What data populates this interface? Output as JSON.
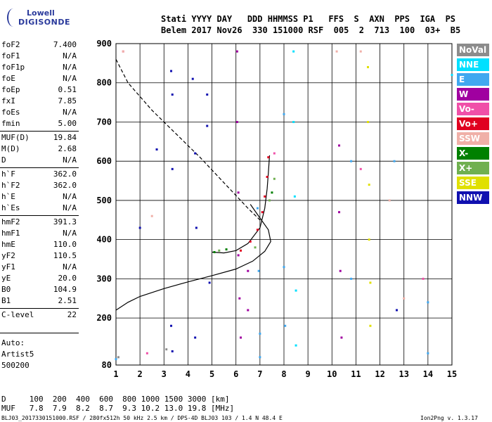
{
  "logo": {
    "line1": "Lowell",
    "line2": "DIGISONDE"
  },
  "header": {
    "row1": "Stati YYYY DAY   DDD HHMMSS P1   FFS  S  AXN  PPS  IGA  PS",
    "row2": "Belem 2017 Nov26  330 151000 RSF  005  2  713  100  03+  B5"
  },
  "params": [
    {
      "name": "foF2",
      "value": "7.400"
    },
    {
      "name": "foF1",
      "value": "N/A"
    },
    {
      "name": "foF1p",
      "value": "N/A"
    },
    {
      "name": "foE",
      "value": "N/A"
    },
    {
      "name": "foEp",
      "value": "0.51"
    },
    {
      "name": "fxI",
      "value": "7.85"
    },
    {
      "name": "foEs",
      "value": "N/A"
    },
    {
      "name": "fmin",
      "value": "5.00"
    },
    {
      "name": "MUF(D)",
      "value": "19.84"
    },
    {
      "name": "M(D)",
      "value": "2.68"
    },
    {
      "name": "D",
      "value": "N/A"
    },
    {
      "name": "h`F",
      "value": "362.0"
    },
    {
      "name": "h`F2",
      "value": "362.0"
    },
    {
      "name": "h`E",
      "value": "N/A"
    },
    {
      "name": "h`Es",
      "value": "N/A"
    },
    {
      "name": "hmF2",
      "value": "391.3"
    },
    {
      "name": "hmF1",
      "value": "N/A"
    },
    {
      "name": "hmE",
      "value": "110.0"
    },
    {
      "name": "yF2",
      "value": "110.5"
    },
    {
      "name": "yF1",
      "value": "N/A"
    },
    {
      "name": "yE",
      "value": "20.0"
    },
    {
      "name": "B0",
      "value": "104.9"
    },
    {
      "name": "B1",
      "value": "2.51"
    },
    {
      "name": "C-level",
      "value": "22"
    }
  ],
  "auto": {
    "line1": "Auto:",
    "line2": "Artist5",
    "line3": "500200"
  },
  "legend": [
    {
      "label": "NoVal",
      "color": "#8c8c8c"
    },
    {
      "label": "NNE",
      "color": "#00e0ff"
    },
    {
      "label": "E",
      "color": "#40a8f0"
    },
    {
      "label": "W",
      "color": "#a000a0"
    },
    {
      "label": "Vo-",
      "color": "#f050a8"
    },
    {
      "label": "Vo+",
      "color": "#e00020"
    },
    {
      "label": "SSW",
      "color": "#f0b0a8"
    },
    {
      "label": "X-",
      "color": "#008000"
    },
    {
      "label": "X+",
      "color": "#70b050"
    },
    {
      "label": "SSE",
      "color": "#e0e000"
    },
    {
      "label": "NNW",
      "color": "#1010b0"
    }
  ],
  "chart_data": {
    "type": "scatter",
    "xlim": [
      1,
      15
    ],
    "ylim": [
      80,
      900
    ],
    "x_ticks": [
      "1",
      "2",
      "3",
      "4",
      "5",
      "6",
      "7",
      "8",
      "9",
      "10",
      "11",
      "12",
      "13",
      "14",
      "15"
    ],
    "y_ticks": [
      "80",
      "200",
      "300",
      "400",
      "500",
      "600",
      "700",
      "800",
      "900"
    ],
    "grid": true,
    "curves": [
      {
        "name": "profile",
        "style": "solid",
        "points": [
          [
            1.0,
            220
          ],
          [
            1.5,
            240
          ],
          [
            2.0,
            255
          ],
          [
            3.0,
            275
          ],
          [
            4.0,
            292
          ],
          [
            5.0,
            308
          ],
          [
            6.0,
            325
          ],
          [
            6.7,
            345
          ],
          [
            7.2,
            370
          ],
          [
            7.45,
            395
          ],
          [
            7.35,
            425
          ],
          [
            7.0,
            455
          ],
          [
            6.6,
            490
          ]
        ]
      },
      {
        "name": "trace",
        "style": "solid",
        "points": [
          [
            5.0,
            368
          ],
          [
            5.5,
            366
          ],
          [
            6.0,
            372
          ],
          [
            6.5,
            390
          ],
          [
            7.0,
            430
          ],
          [
            7.2,
            480
          ],
          [
            7.3,
            530
          ],
          [
            7.35,
            570
          ],
          [
            7.4,
            615
          ]
        ]
      },
      {
        "name": "extrapolated",
        "style": "dashed",
        "points": [
          [
            1.0,
            860
          ],
          [
            1.5,
            800
          ],
          [
            2.5,
            730
          ],
          [
            3.5,
            670
          ],
          [
            4.5,
            610
          ],
          [
            5.5,
            545
          ],
          [
            6.5,
            480
          ],
          [
            7.0,
            450
          ]
        ]
      }
    ],
    "echoes": [
      {
        "series": "Vo+",
        "x": 6.2,
        "y": 372
      },
      {
        "series": "Vo+",
        "x": 6.6,
        "y": 395
      },
      {
        "series": "Vo+",
        "x": 6.9,
        "y": 425
      },
      {
        "series": "Vo+",
        "x": 7.1,
        "y": 470
      },
      {
        "series": "Vo+",
        "x": 7.2,
        "y": 510
      },
      {
        "series": "Vo+",
        "x": 7.3,
        "y": 560
      },
      {
        "series": "Vo+",
        "x": 7.35,
        "y": 610
      },
      {
        "series": "X+",
        "x": 5.3,
        "y": 372
      },
      {
        "series": "X+",
        "x": 6.8,
        "y": 380
      },
      {
        "series": "X+",
        "x": 7.4,
        "y": 500
      },
      {
        "series": "X+",
        "x": 7.6,
        "y": 555
      },
      {
        "series": "X-",
        "x": 5.1,
        "y": 368
      },
      {
        "series": "X-",
        "x": 5.6,
        "y": 375
      },
      {
        "series": "X-",
        "x": 7.5,
        "y": 520
      },
      {
        "series": "W",
        "x": 6.05,
        "y": 880
      },
      {
        "series": "W",
        "x": 6.05,
        "y": 700
      },
      {
        "series": "W",
        "x": 6.1,
        "y": 520
      },
      {
        "series": "W",
        "x": 6.1,
        "y": 360
      },
      {
        "series": "W",
        "x": 6.15,
        "y": 250
      },
      {
        "series": "W",
        "x": 6.2,
        "y": 150
      },
      {
        "series": "W",
        "x": 6.5,
        "y": 320
      },
      {
        "series": "W",
        "x": 6.5,
        "y": 220
      },
      {
        "series": "W",
        "x": 10.3,
        "y": 640
      },
      {
        "series": "W",
        "x": 10.3,
        "y": 470
      },
      {
        "series": "W",
        "x": 10.35,
        "y": 320
      },
      {
        "series": "W",
        "x": 10.4,
        "y": 150
      },
      {
        "series": "E",
        "x": 6.9,
        "y": 480
      },
      {
        "series": "E",
        "x": 6.95,
        "y": 320
      },
      {
        "series": "E",
        "x": 7.0,
        "y": 160
      },
      {
        "series": "E",
        "x": 7.0,
        "y": 100
      },
      {
        "series": "E",
        "x": 8.0,
        "y": 720
      },
      {
        "series": "E",
        "x": 8.0,
        "y": 330
      },
      {
        "series": "E",
        "x": 8.05,
        "y": 180
      },
      {
        "series": "E",
        "x": 10.8,
        "y": 600
      },
      {
        "series": "E",
        "x": 10.8,
        "y": 300
      },
      {
        "series": "E",
        "x": 12.6,
        "y": 600
      },
      {
        "series": "E",
        "x": 14.0,
        "y": 240
      },
      {
        "series": "E",
        "x": 14.0,
        "y": 110
      },
      {
        "series": "E",
        "x": 1.0,
        "y": 95
      },
      {
        "series": "NNE",
        "x": 8.4,
        "y": 880
      },
      {
        "series": "NNE",
        "x": 8.4,
        "y": 700
      },
      {
        "series": "NNE",
        "x": 8.45,
        "y": 510
      },
      {
        "series": "NNE",
        "x": 8.5,
        "y": 270
      },
      {
        "series": "NNE",
        "x": 8.5,
        "y": 130
      },
      {
        "series": "NNE",
        "x": 15.0,
        "y": 820
      },
      {
        "series": "NNW",
        "x": 3.3,
        "y": 830
      },
      {
        "series": "NNW",
        "x": 3.35,
        "y": 770
      },
      {
        "series": "NNW",
        "x": 3.35,
        "y": 580
      },
      {
        "series": "NNW",
        "x": 3.3,
        "y": 180
      },
      {
        "series": "NNW",
        "x": 3.35,
        "y": 115
      },
      {
        "series": "NNW",
        "x": 4.2,
        "y": 810
      },
      {
        "series": "NNW",
        "x": 4.3,
        "y": 620
      },
      {
        "series": "NNW",
        "x": 4.35,
        "y": 430
      },
      {
        "series": "NNW",
        "x": 4.3,
        "y": 150
      },
      {
        "series": "NNW",
        "x": 4.8,
        "y": 770
      },
      {
        "series": "NNW",
        "x": 4.8,
        "y": 690
      },
      {
        "series": "NNW",
        "x": 2.7,
        "y": 630
      },
      {
        "series": "NNW",
        "x": 2.0,
        "y": 430
      },
      {
        "series": "NNW",
        "x": 4.9,
        "y": 290
      },
      {
        "series": "NNW",
        "x": 12.7,
        "y": 220
      },
      {
        "series": "SSE",
        "x": 11.5,
        "y": 840
      },
      {
        "series": "SSE",
        "x": 11.5,
        "y": 700
      },
      {
        "series": "SSE",
        "x": 11.55,
        "y": 540
      },
      {
        "series": "SSE",
        "x": 11.55,
        "y": 400
      },
      {
        "series": "SSE",
        "x": 11.6,
        "y": 290
      },
      {
        "series": "SSE",
        "x": 11.6,
        "y": 180
      },
      {
        "series": "Vo-",
        "x": 1.3,
        "y": 880
      },
      {
        "series": "Vo-",
        "x": 7.6,
        "y": 620
      },
      {
        "series": "Vo-",
        "x": 2.3,
        "y": 110
      },
      {
        "series": "Vo-",
        "x": 11.2,
        "y": 580
      },
      {
        "series": "Vo-",
        "x": 13.8,
        "y": 300
      },
      {
        "series": "SSW",
        "x": 1.3,
        "y": 880
      },
      {
        "series": "SSW",
        "x": 2.5,
        "y": 460
      },
      {
        "series": "SSW",
        "x": 10.2,
        "y": 880
      },
      {
        "series": "SSW",
        "x": 11.2,
        "y": 880
      },
      {
        "series": "SSW",
        "x": 12.4,
        "y": 500
      },
      {
        "series": "SSW",
        "x": 13.0,
        "y": 250
      },
      {
        "series": "NoVal",
        "x": 1.1,
        "y": 100
      },
      {
        "series": "NoVal",
        "x": 3.1,
        "y": 120
      }
    ]
  },
  "bottom_table": {
    "row1": "D     100  200  400  600  800 1000 1500 3000 [km]",
    "row2": "MUF   7.8  7.9  8.2  8.7  9.3 10.2 13.0 19.8 [MHz]"
  },
  "footer": {
    "left": "BLJ03_2017330151000.RSF / 280fx512h 50 kHz 2.5 km / DPS-4D BLJ03 103 / 1.4 N 48.4 E",
    "right": "Ion2Png v. 1.3.17"
  }
}
